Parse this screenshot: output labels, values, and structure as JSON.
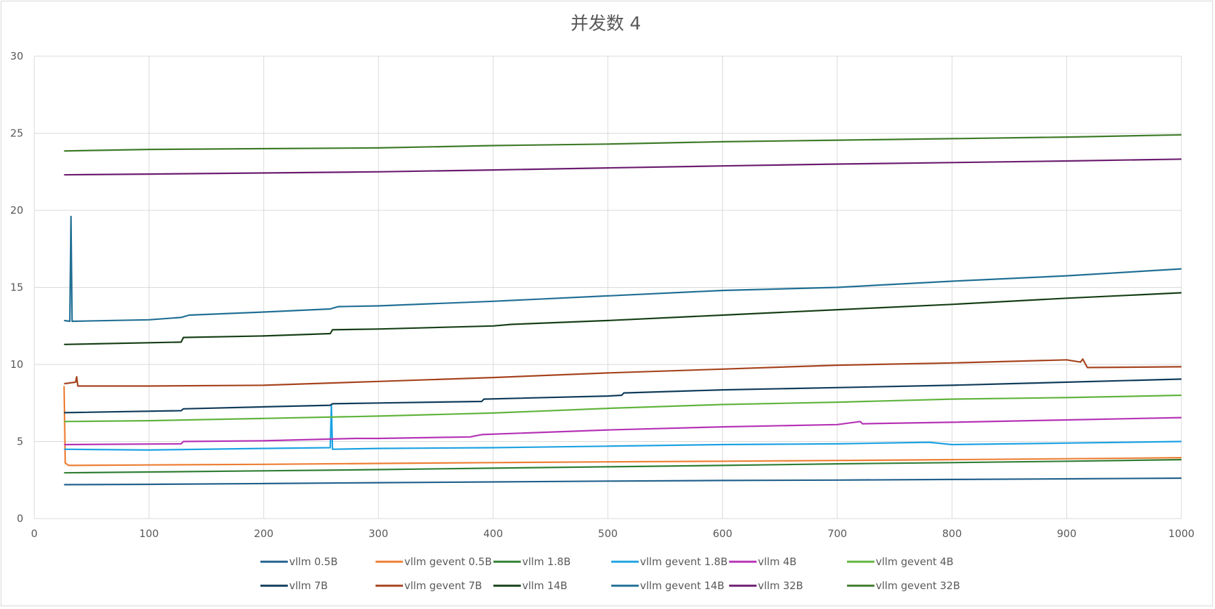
{
  "chart_data": {
    "type": "line",
    "title": "并发数 4",
    "xlabel": "",
    "ylabel": "",
    "xlim": [
      0,
      1000
    ],
    "ylim": [
      0,
      30
    ],
    "x_ticks": [
      0,
      100,
      200,
      300,
      400,
      500,
      600,
      700,
      800,
      900,
      1000
    ],
    "y_ticks": [
      0,
      5,
      10,
      15,
      20,
      25,
      30
    ],
    "grid": true,
    "legend_position": "bottom",
    "series": [
      {
        "name": "vllm 0.5B",
        "color": "#1f5f8b",
        "points": [
          [
            26,
            2.2
          ],
          [
            100,
            2.22
          ],
          [
            200,
            2.27
          ],
          [
            300,
            2.33
          ],
          [
            400,
            2.38
          ],
          [
            500,
            2.43
          ],
          [
            600,
            2.47
          ],
          [
            700,
            2.5
          ],
          [
            800,
            2.54
          ],
          [
            900,
            2.58
          ],
          [
            1000,
            2.62
          ]
        ]
      },
      {
        "name": "vllm gevent 0.5B",
        "color": "#ed7d31",
        "points": [
          [
            26,
            8.6
          ],
          [
            27,
            3.6
          ],
          [
            30,
            3.45
          ],
          [
            100,
            3.48
          ],
          [
            200,
            3.52
          ],
          [
            300,
            3.58
          ],
          [
            400,
            3.63
          ],
          [
            500,
            3.68
          ],
          [
            600,
            3.72
          ],
          [
            700,
            3.77
          ],
          [
            800,
            3.82
          ],
          [
            900,
            3.88
          ],
          [
            1000,
            3.95
          ]
        ]
      },
      {
        "name": "vllm 1.8B",
        "color": "#2e7d32",
        "points": [
          [
            26,
            2.97
          ],
          [
            100,
            3.02
          ],
          [
            200,
            3.1
          ],
          [
            300,
            3.18
          ],
          [
            400,
            3.27
          ],
          [
            500,
            3.36
          ],
          [
            600,
            3.45
          ],
          [
            700,
            3.55
          ],
          [
            800,
            3.63
          ],
          [
            900,
            3.72
          ],
          [
            1000,
            3.82
          ]
        ]
      },
      {
        "name": "vllm gevent 1.8B",
        "color": "#1ba1e2",
        "points": [
          [
            26,
            4.5
          ],
          [
            100,
            4.45
          ],
          [
            200,
            4.55
          ],
          [
            258,
            4.6
          ],
          [
            259,
            7.4
          ],
          [
            260,
            4.5
          ],
          [
            300,
            4.55
          ],
          [
            400,
            4.6
          ],
          [
            500,
            4.7
          ],
          [
            600,
            4.8
          ],
          [
            700,
            4.85
          ],
          [
            780,
            4.95
          ],
          [
            800,
            4.8
          ],
          [
            900,
            4.9
          ],
          [
            1000,
            5.0
          ]
        ]
      },
      {
        "name": "vllm 4B",
        "color": "#b531b5",
        "points": [
          [
            26,
            4.8
          ],
          [
            128,
            4.85
          ],
          [
            130,
            5.0
          ],
          [
            200,
            5.05
          ],
          [
            280,
            5.2
          ],
          [
            300,
            5.2
          ],
          [
            380,
            5.3
          ],
          [
            390,
            5.45
          ],
          [
            500,
            5.75
          ],
          [
            600,
            5.95
          ],
          [
            700,
            6.1
          ],
          [
            720,
            6.3
          ],
          [
            722,
            6.15
          ],
          [
            800,
            6.25
          ],
          [
            900,
            6.4
          ],
          [
            1000,
            6.55
          ]
        ]
      },
      {
        "name": "vllm gevent 4B",
        "color": "#5fb33b",
        "points": [
          [
            26,
            6.3
          ],
          [
            100,
            6.35
          ],
          [
            200,
            6.5
          ],
          [
            300,
            6.65
          ],
          [
            400,
            6.85
          ],
          [
            500,
            7.15
          ],
          [
            600,
            7.4
          ],
          [
            700,
            7.55
          ],
          [
            800,
            7.75
          ],
          [
            900,
            7.85
          ],
          [
            1000,
            8.0
          ]
        ]
      },
      {
        "name": "vllm 7B",
        "color": "#0e3a5a",
        "points": [
          [
            26,
            6.87
          ],
          [
            128,
            7.0
          ],
          [
            130,
            7.12
          ],
          [
            200,
            7.25
          ],
          [
            258,
            7.35
          ],
          [
            260,
            7.45
          ],
          [
            300,
            7.5
          ],
          [
            390,
            7.6
          ],
          [
            392,
            7.75
          ],
          [
            500,
            7.95
          ],
          [
            512,
            8.0
          ],
          [
            514,
            8.15
          ],
          [
            600,
            8.35
          ],
          [
            700,
            8.5
          ],
          [
            800,
            8.65
          ],
          [
            850,
            8.75
          ],
          [
            900,
            8.85
          ],
          [
            1000,
            9.05
          ]
        ]
      },
      {
        "name": "vllm gevent 7B",
        "color": "#a5421c",
        "points": [
          [
            26,
            8.75
          ],
          [
            36,
            8.85
          ],
          [
            37,
            9.2
          ],
          [
            38,
            8.6
          ],
          [
            100,
            8.6
          ],
          [
            200,
            8.65
          ],
          [
            300,
            8.9
          ],
          [
            400,
            9.15
          ],
          [
            500,
            9.45
          ],
          [
            600,
            9.7
          ],
          [
            700,
            9.95
          ],
          [
            800,
            10.1
          ],
          [
            900,
            10.3
          ],
          [
            912,
            10.15
          ],
          [
            914,
            10.35
          ],
          [
            918,
            9.8
          ],
          [
            1000,
            9.85
          ]
        ]
      },
      {
        "name": "vllm 14B",
        "color": "#143d14",
        "points": [
          [
            26,
            11.3
          ],
          [
            128,
            11.45
          ],
          [
            130,
            11.75
          ],
          [
            200,
            11.85
          ],
          [
            258,
            12.0
          ],
          [
            260,
            12.25
          ],
          [
            300,
            12.3
          ],
          [
            400,
            12.5
          ],
          [
            416,
            12.6
          ],
          [
            500,
            12.85
          ],
          [
            600,
            13.2
          ],
          [
            700,
            13.55
          ],
          [
            800,
            13.9
          ],
          [
            900,
            14.3
          ],
          [
            1000,
            14.65
          ]
        ]
      },
      {
        "name": "vllm gevent 14B",
        "color": "#1f6e94",
        "points": [
          [
            26,
            12.85
          ],
          [
            31,
            12.8
          ],
          [
            32,
            19.6
          ],
          [
            33,
            12.8
          ],
          [
            100,
            12.9
          ],
          [
            128,
            13.05
          ],
          [
            135,
            13.2
          ],
          [
            200,
            13.4
          ],
          [
            258,
            13.6
          ],
          [
            265,
            13.75
          ],
          [
            300,
            13.8
          ],
          [
            400,
            14.1
          ],
          [
            500,
            14.45
          ],
          [
            600,
            14.8
          ],
          [
            700,
            15.0
          ],
          [
            800,
            15.4
          ],
          [
            900,
            15.75
          ],
          [
            1000,
            16.2
          ]
        ]
      },
      {
        "name": "vllm 32B",
        "color": "#6a1a6e",
        "points": [
          [
            26,
            22.3
          ],
          [
            100,
            22.35
          ],
          [
            200,
            22.42
          ],
          [
            300,
            22.5
          ],
          [
            400,
            22.62
          ],
          [
            500,
            22.75
          ],
          [
            600,
            22.88
          ],
          [
            700,
            23.0
          ],
          [
            800,
            23.1
          ],
          [
            900,
            23.2
          ],
          [
            1000,
            23.32
          ]
        ]
      },
      {
        "name": "vllm gevent 32B",
        "color": "#3c7a27",
        "points": [
          [
            26,
            23.85
          ],
          [
            100,
            23.95
          ],
          [
            200,
            24.0
          ],
          [
            300,
            24.05
          ],
          [
            400,
            24.2
          ],
          [
            500,
            24.3
          ],
          [
            600,
            24.45
          ],
          [
            700,
            24.55
          ],
          [
            800,
            24.65
          ],
          [
            900,
            24.75
          ],
          [
            1000,
            24.9
          ]
        ]
      }
    ]
  }
}
